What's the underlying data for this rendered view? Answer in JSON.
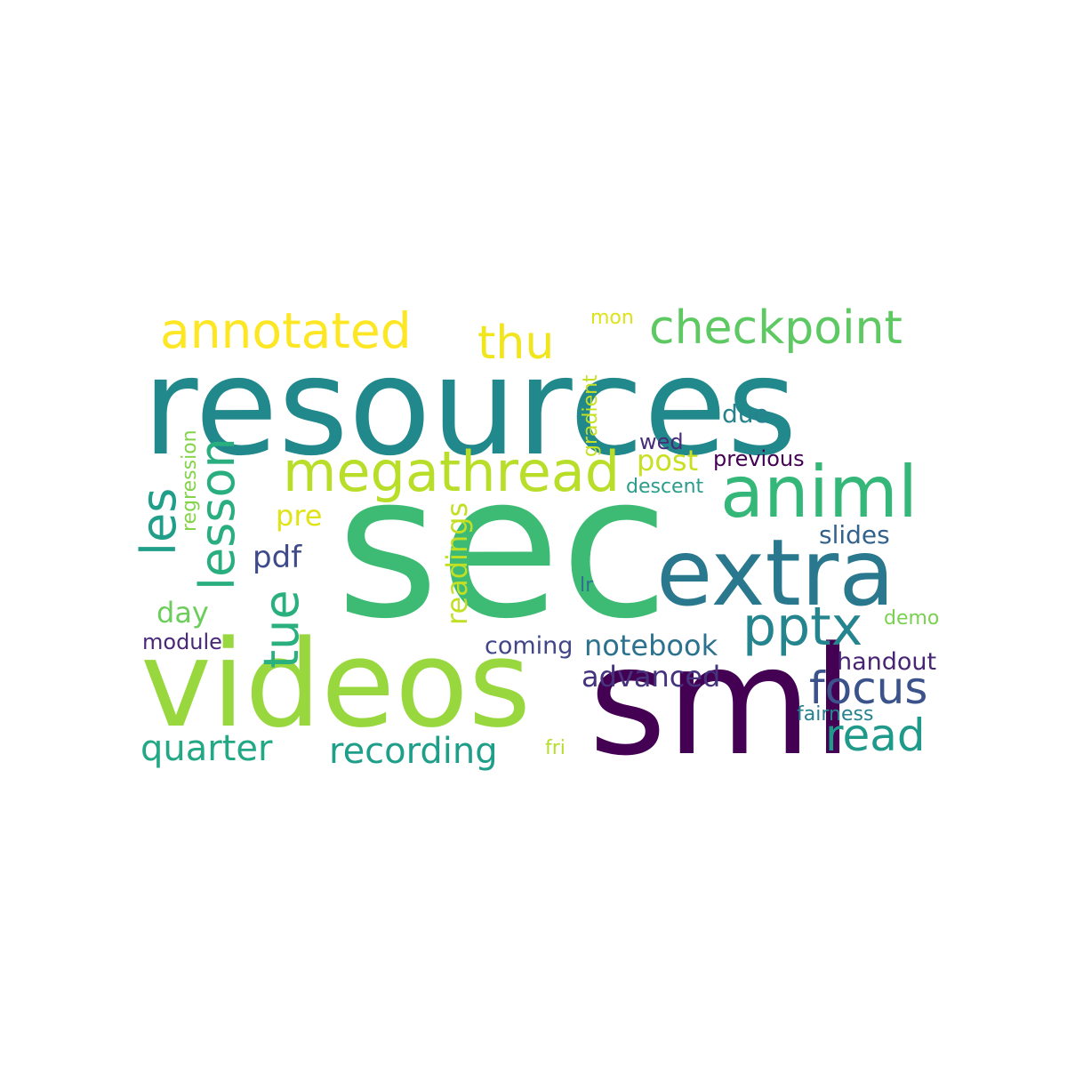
{
  "words": [
    {
      "id": "resources",
      "text": "resources",
      "color": "#21888c"
    },
    {
      "id": "sec",
      "text": "sec",
      "color": "#3dbb74"
    },
    {
      "id": "videos",
      "text": "videos",
      "color": "#98d83e"
    },
    {
      "id": "sml",
      "text": "sml",
      "color": "#440154"
    },
    {
      "id": "extra",
      "text": "extra",
      "color": "#2a788e"
    },
    {
      "id": "animl",
      "text": "animl",
      "color": "#35b779"
    },
    {
      "id": "megathread",
      "text": "megathread",
      "color": "#b8de29"
    },
    {
      "id": "annotated",
      "text": "annotated",
      "color": "#fde725"
    },
    {
      "id": "checkpoint",
      "text": "checkpoint",
      "color": "#5ec962"
    },
    {
      "id": "thu",
      "text": "thu",
      "color": "#f1e51d"
    },
    {
      "id": "lesson",
      "text": "lesson",
      "color": "#29af7f"
    },
    {
      "id": "les",
      "text": "les",
      "color": "#1f9e89"
    },
    {
      "id": "tue",
      "text": "tue",
      "color": "#2ab07f"
    },
    {
      "id": "pptx",
      "text": "pptx",
      "color": "#25858e"
    },
    {
      "id": "focus",
      "text": "focus",
      "color": "#3b528b"
    },
    {
      "id": "read",
      "text": "read",
      "color": "#1f9a8a"
    },
    {
      "id": "quarter",
      "text": "quarter",
      "color": "#22a884"
    },
    {
      "id": "recording",
      "text": "recording",
      "color": "#1f9e89"
    },
    {
      "id": "notebook",
      "text": "notebook",
      "color": "#2c728e"
    },
    {
      "id": "advanced",
      "text": "advanced",
      "color": "#46337e"
    },
    {
      "id": "readings",
      "text": "readings",
      "color": "#c2df23"
    },
    {
      "id": "post",
      "text": "post",
      "color": "#c8e020"
    },
    {
      "id": "pre",
      "text": "pre",
      "color": "#dfe318"
    },
    {
      "id": "pdf",
      "text": "pdf",
      "color": "#3e4a89"
    },
    {
      "id": "day",
      "text": "day",
      "color": "#6ccd5a"
    },
    {
      "id": "module",
      "text": "module",
      "color": "#482878"
    },
    {
      "id": "coming",
      "text": "coming",
      "color": "#404688"
    },
    {
      "id": "slides",
      "text": "slides",
      "color": "#33638d"
    },
    {
      "id": "due",
      "text": "due",
      "color": "#26828e"
    },
    {
      "id": "previous",
      "text": "previous",
      "color": "#440154"
    },
    {
      "id": "wed",
      "text": "wed",
      "color": "#472c7a"
    },
    {
      "id": "descent",
      "text": "descent",
      "color": "#2a9d8a"
    },
    {
      "id": "gradient",
      "text": "gradient",
      "color": "#c5e021"
    },
    {
      "id": "mon",
      "text": "mon",
      "color": "#dde318"
    },
    {
      "id": "regression",
      "text": "regression",
      "color": "#84d44b"
    },
    {
      "id": "lr",
      "text": "lr",
      "color": "#2c728e"
    },
    {
      "id": "demo",
      "text": "demo",
      "color": "#7ad151"
    },
    {
      "id": "handout",
      "text": "handout",
      "color": "#482475"
    },
    {
      "id": "fairness",
      "text": "fairness",
      "color": "#26828e"
    },
    {
      "id": "fri",
      "text": "fri",
      "color": "#b5de2b"
    }
  ]
}
